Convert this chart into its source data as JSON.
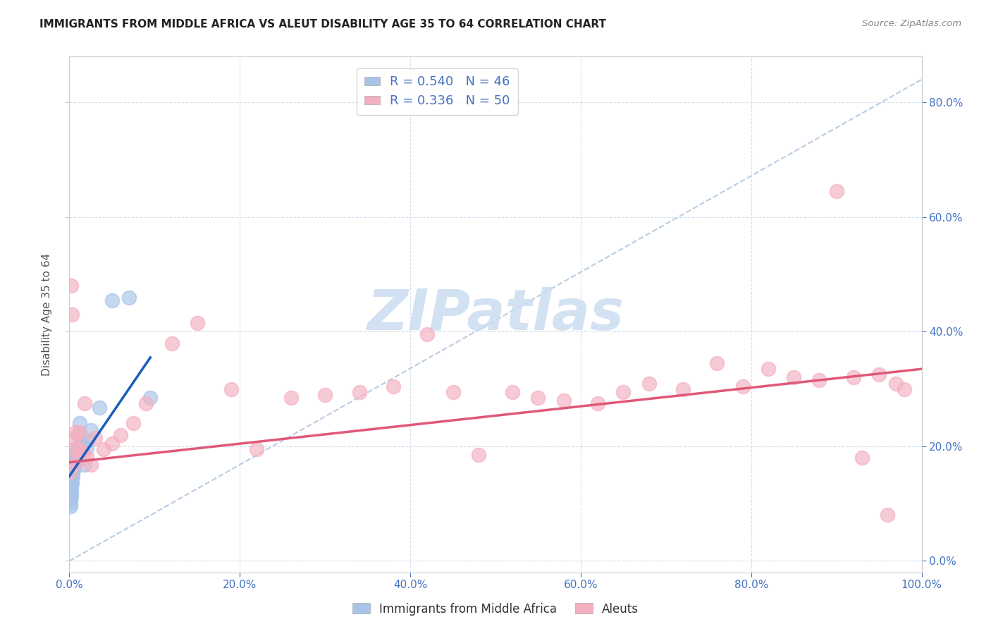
{
  "title": "IMMIGRANTS FROM MIDDLE AFRICA VS ALEUT DISABILITY AGE 35 TO 64 CORRELATION CHART",
  "source": "Source: ZipAtlas.com",
  "ylabel": "Disability Age 35 to 64",
  "xlim": [
    0,
    1.0
  ],
  "ylim": [
    -0.02,
    0.88
  ],
  "xticks": [
    0.0,
    0.2,
    0.4,
    0.6,
    0.8,
    1.0
  ],
  "xticklabels": [
    "0.0%",
    "20.0%",
    "40.0%",
    "60.0%",
    "80.0%",
    "100.0%"
  ],
  "yticks": [
    0.0,
    0.2,
    0.4,
    0.6,
    0.8
  ],
  "yticklabels": [
    "0.0%",
    "20.0%",
    "40.0%",
    "60.0%",
    "80.0%"
  ],
  "blue_R": 0.54,
  "blue_N": 46,
  "pink_R": 0.336,
  "pink_N": 50,
  "blue_scatter_color": "#a8c4e8",
  "pink_scatter_color": "#f4b0c0",
  "blue_line_color": "#1a5cbf",
  "pink_line_color": "#e05878",
  "dashed_line_color": "#b8cce4",
  "watermark_color": "#ccddf0",
  "legend_label_blue": "Immigrants from Middle Africa",
  "legend_label_pink": "Aleuts",
  "blue_scatter_x": [
    0.001,
    0.001,
    0.001,
    0.001,
    0.001,
    0.001,
    0.001,
    0.001,
    0.001,
    0.001,
    0.002,
    0.002,
    0.002,
    0.002,
    0.002,
    0.002,
    0.002,
    0.002,
    0.003,
    0.003,
    0.003,
    0.003,
    0.003,
    0.004,
    0.004,
    0.004,
    0.004,
    0.005,
    0.005,
    0.005,
    0.006,
    0.006,
    0.007,
    0.007,
    0.008,
    0.01,
    0.012,
    0.015,
    0.018,
    0.02,
    0.022,
    0.025,
    0.035,
    0.05,
    0.07,
    0.095
  ],
  "blue_scatter_y": [
    0.155,
    0.148,
    0.142,
    0.135,
    0.128,
    0.122,
    0.115,
    0.108,
    0.1,
    0.095,
    0.16,
    0.152,
    0.145,
    0.138,
    0.132,
    0.125,
    0.118,
    0.112,
    0.165,
    0.157,
    0.15,
    0.143,
    0.136,
    0.168,
    0.162,
    0.155,
    0.148,
    0.172,
    0.165,
    0.158,
    0.178,
    0.17,
    0.185,
    0.178,
    0.192,
    0.22,
    0.24,
    0.205,
    0.168,
    0.198,
    0.21,
    0.228,
    0.268,
    0.455,
    0.46,
    0.285
  ],
  "pink_scatter_x": [
    0.001,
    0.002,
    0.003,
    0.004,
    0.005,
    0.007,
    0.008,
    0.01,
    0.012,
    0.014,
    0.016,
    0.018,
    0.02,
    0.025,
    0.03,
    0.04,
    0.05,
    0.06,
    0.075,
    0.09,
    0.12,
    0.15,
    0.19,
    0.22,
    0.26,
    0.3,
    0.34,
    0.38,
    0.42,
    0.45,
    0.48,
    0.52,
    0.55,
    0.58,
    0.62,
    0.65,
    0.68,
    0.72,
    0.76,
    0.79,
    0.82,
    0.85,
    0.88,
    0.9,
    0.92,
    0.93,
    0.95,
    0.96,
    0.97,
    0.98
  ],
  "pink_scatter_y": [
    0.155,
    0.48,
    0.43,
    0.195,
    0.215,
    0.225,
    0.172,
    0.198,
    0.225,
    0.19,
    0.188,
    0.275,
    0.182,
    0.168,
    0.215,
    0.195,
    0.205,
    0.22,
    0.24,
    0.275,
    0.38,
    0.415,
    0.3,
    0.195,
    0.285,
    0.29,
    0.295,
    0.305,
    0.395,
    0.295,
    0.185,
    0.295,
    0.285,
    0.28,
    0.275,
    0.295,
    0.31,
    0.3,
    0.345,
    0.305,
    0.335,
    0.32,
    0.315,
    0.645,
    0.32,
    0.18,
    0.325,
    0.08,
    0.31,
    0.3
  ],
  "blue_line_x": [
    0.0,
    0.095
  ],
  "blue_line_y": [
    0.148,
    0.355
  ],
  "pink_line_x": [
    0.0,
    1.0
  ],
  "pink_line_y": [
    0.172,
    0.335
  ],
  "dashed_line_x": [
    0.0,
    1.0
  ],
  "dashed_line_y": [
    0.0,
    0.84
  ]
}
